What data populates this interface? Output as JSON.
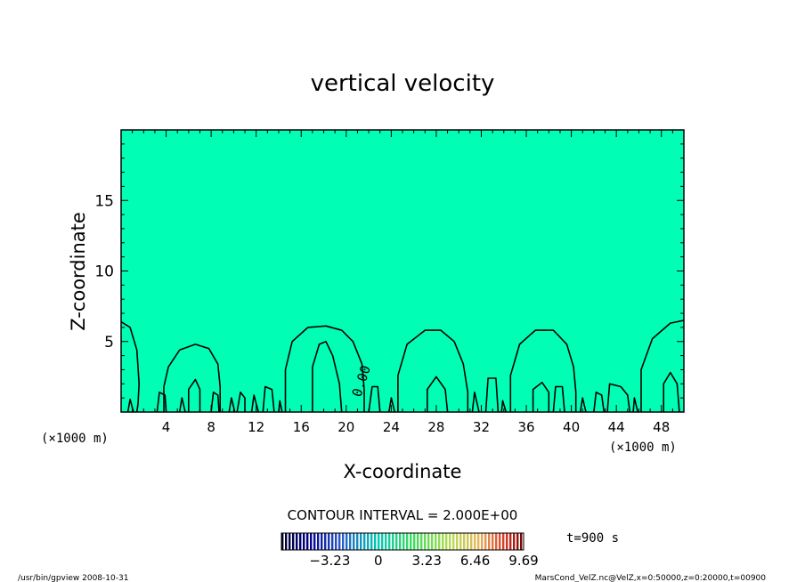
{
  "chart_data": {
    "type": "contour",
    "title": "vertical velocity",
    "xlabel": "X-coordinate",
    "ylabel": "Z-coordinate",
    "x_unit_left": "(×1000 m)",
    "x_unit_right": "(×1000 m)",
    "xlim": [
      0,
      50
    ],
    "ylim": [
      0,
      20
    ],
    "x_ticks": [
      4,
      8,
      12,
      16,
      20,
      24,
      28,
      32,
      36,
      40,
      44,
      48
    ],
    "y_ticks": [
      5,
      10,
      15
    ],
    "contour_interval_text": "CONTOUR INTERVAL = 2.000E+00",
    "contour_label": "0.00",
    "time_label": "t=900 s",
    "colorbar_ticks": [
      "-3.23",
      "0",
      "3.23",
      "6.46",
      "9.69"
    ],
    "colorbar_range": [
      -6.46,
      9.69
    ],
    "fill_color": "#00ffb4",
    "contours": [
      {
        "level": 0,
        "points": [
          [
            0,
            6.4
          ],
          [
            0.8,
            6.0
          ],
          [
            1.4,
            4.4
          ],
          [
            1.6,
            2.0
          ],
          [
            1.5,
            0.6
          ],
          [
            1.4,
            0
          ]
        ]
      },
      {
        "level": 0,
        "points": [
          [
            3.8,
            0
          ],
          [
            3.8,
            1.8
          ],
          [
            4.2,
            3.2
          ],
          [
            5.2,
            4.4
          ],
          [
            6.6,
            4.8
          ],
          [
            7.8,
            4.5
          ],
          [
            8.6,
            3.4
          ],
          [
            8.8,
            1.8
          ],
          [
            8.8,
            0
          ]
        ]
      },
      {
        "level": 0,
        "points": [
          [
            14.6,
            0
          ],
          [
            14.6,
            3.0
          ],
          [
            15.2,
            5.0
          ],
          [
            16.6,
            6.0
          ],
          [
            18.2,
            6.1
          ],
          [
            19.6,
            5.8
          ],
          [
            20.6,
            5.0
          ],
          [
            21.4,
            3.4
          ],
          [
            21.6,
            1.6
          ],
          [
            21.6,
            0
          ]
        ]
      },
      {
        "level": 0,
        "points": [
          [
            24.6,
            0
          ],
          [
            24.6,
            2.6
          ],
          [
            25.4,
            4.8
          ],
          [
            27.0,
            5.8
          ],
          [
            28.4,
            5.8
          ],
          [
            29.6,
            5.0
          ],
          [
            30.4,
            3.4
          ],
          [
            30.8,
            1.4
          ],
          [
            30.8,
            0
          ]
        ]
      },
      {
        "level": 0,
        "points": [
          [
            34.6,
            0
          ],
          [
            34.6,
            2.6
          ],
          [
            35.4,
            4.8
          ],
          [
            36.8,
            5.8
          ],
          [
            38.4,
            5.8
          ],
          [
            39.6,
            4.8
          ],
          [
            40.2,
            3.2
          ],
          [
            40.4,
            1.4
          ],
          [
            40.4,
            0
          ]
        ]
      },
      {
        "level": 0,
        "points": [
          [
            46.2,
            0
          ],
          [
            46.2,
            3.0
          ],
          [
            47.2,
            5.2
          ],
          [
            48.8,
            6.3
          ],
          [
            50.0,
            6.5
          ]
        ]
      },
      {
        "level": 2,
        "points": [
          [
            6.0,
            0
          ],
          [
            6.0,
            1.6
          ],
          [
            6.6,
            2.3
          ],
          [
            7.0,
            1.6
          ],
          [
            7.0,
            0
          ]
        ]
      },
      {
        "level": 2,
        "points": [
          [
            17.0,
            0
          ],
          [
            17.0,
            3.2
          ],
          [
            17.6,
            4.8
          ],
          [
            18.2,
            5.0
          ],
          [
            18.8,
            4.0
          ],
          [
            19.4,
            2.0
          ],
          [
            19.6,
            0
          ]
        ]
      },
      {
        "level": 2,
        "points": [
          [
            27.2,
            0
          ],
          [
            27.2,
            1.6
          ],
          [
            28.0,
            2.5
          ],
          [
            28.8,
            1.6
          ],
          [
            29.0,
            0
          ]
        ]
      },
      {
        "level": 2,
        "points": [
          [
            36.6,
            0
          ],
          [
            36.6,
            1.6
          ],
          [
            37.4,
            2.1
          ],
          [
            38.0,
            1.4
          ],
          [
            38.0,
            0
          ]
        ]
      },
      {
        "level": 2,
        "points": [
          [
            48.2,
            0
          ],
          [
            48.2,
            2.0
          ],
          [
            48.8,
            2.8
          ],
          [
            49.4,
            2.0
          ],
          [
            49.6,
            0
          ]
        ]
      },
      {
        "level": 0,
        "points": [
          [
            0.6,
            0
          ],
          [
            0.8,
            0.9
          ],
          [
            1.1,
            0
          ]
        ]
      },
      {
        "level": 0,
        "points": [
          [
            3.2,
            0
          ],
          [
            3.4,
            1.4
          ],
          [
            3.9,
            1.2
          ],
          [
            4.0,
            0
          ]
        ]
      },
      {
        "level": 0,
        "points": [
          [
            5.2,
            0
          ],
          [
            5.4,
            1.0
          ],
          [
            5.7,
            0
          ]
        ]
      },
      {
        "level": 0,
        "points": [
          [
            8.0,
            0
          ],
          [
            8.2,
            1.4
          ],
          [
            8.6,
            1.2
          ],
          [
            8.7,
            0
          ]
        ]
      },
      {
        "level": 0,
        "points": [
          [
            9.6,
            0
          ],
          [
            9.8,
            1.0
          ],
          [
            10.1,
            0
          ]
        ]
      },
      {
        "level": 0,
        "points": [
          [
            10.3,
            0
          ],
          [
            10.6,
            1.4
          ],
          [
            11.0,
            1.0
          ],
          [
            11.0,
            0
          ]
        ]
      },
      {
        "level": 0,
        "points": [
          [
            11.6,
            0
          ],
          [
            11.8,
            1.2
          ],
          [
            12.2,
            0
          ]
        ]
      },
      {
        "level": 0,
        "points": [
          [
            12.6,
            0
          ],
          [
            12.8,
            1.8
          ],
          [
            13.4,
            1.6
          ],
          [
            13.6,
            0
          ]
        ]
      },
      {
        "level": 0,
        "points": [
          [
            14.0,
            0
          ],
          [
            14.1,
            0.8
          ],
          [
            14.3,
            0
          ]
        ]
      },
      {
        "level": 0,
        "points": [
          [
            22.0,
            0
          ],
          [
            22.3,
            1.8
          ],
          [
            22.8,
            1.8
          ],
          [
            23.0,
            0
          ]
        ]
      },
      {
        "level": 0,
        "points": [
          [
            23.8,
            0
          ],
          [
            24.0,
            1.0
          ],
          [
            24.3,
            0
          ]
        ]
      },
      {
        "level": 0,
        "points": [
          [
            31.2,
            0
          ],
          [
            31.4,
            1.4
          ],
          [
            31.8,
            0
          ]
        ]
      },
      {
        "level": 0,
        "points": [
          [
            32.4,
            0
          ],
          [
            32.6,
            2.4
          ],
          [
            33.3,
            2.4
          ],
          [
            33.5,
            0
          ]
        ]
      },
      {
        "level": 0,
        "points": [
          [
            33.8,
            0
          ],
          [
            33.9,
            0.8
          ],
          [
            34.2,
            0
          ]
        ]
      },
      {
        "level": 0,
        "points": [
          [
            38.4,
            0
          ],
          [
            38.6,
            1.8
          ],
          [
            39.2,
            1.8
          ],
          [
            39.4,
            0
          ]
        ]
      },
      {
        "level": 0,
        "points": [
          [
            40.8,
            0
          ],
          [
            41.0,
            1.0
          ],
          [
            41.3,
            0
          ]
        ]
      },
      {
        "level": 0,
        "points": [
          [
            42.0,
            0
          ],
          [
            42.2,
            1.4
          ],
          [
            42.7,
            1.2
          ],
          [
            42.9,
            0
          ]
        ]
      },
      {
        "level": 0,
        "points": [
          [
            43.2,
            0
          ],
          [
            43.4,
            2.0
          ],
          [
            44.4,
            1.8
          ],
          [
            45.0,
            1.2
          ],
          [
            45.2,
            0
          ]
        ]
      },
      {
        "level": 0,
        "points": [
          [
            45.5,
            0
          ],
          [
            45.6,
            1.0
          ],
          [
            45.9,
            0
          ]
        ]
      }
    ]
  },
  "footer": {
    "left": "/usr/bin/gpview   2008-10-31",
    "right": "MarsCond_VelZ.nc@VelZ,x=0:50000,z=0:20000,t=00900"
  }
}
